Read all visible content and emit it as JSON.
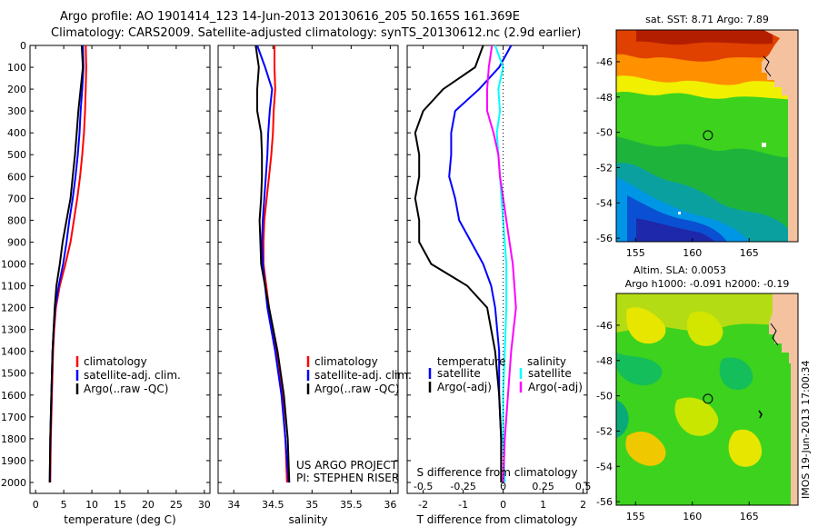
{
  "title_line1": "Argo profile: AO 1901414_123 14-Jun-2013 20130616_205 50.165S 161.369E",
  "title_line2": "Climatology: CARS2009. Satellite-adjusted climatology: synTS_20130612.nc (2.9d earlier)",
  "depth_ticks": [
    0,
    100,
    200,
    300,
    400,
    500,
    600,
    700,
    800,
    900,
    1000,
    1100,
    1200,
    1300,
    1400,
    1500,
    1600,
    1700,
    1800,
    1900,
    2000
  ],
  "colors": {
    "climatology": "#ff0000",
    "satellite": "#0000ff",
    "argo": "#000000",
    "sal_satellite": "#00ffff",
    "sal_argo": "#ff00ff",
    "land": "#f5c2a0"
  },
  "chart_data": [
    {
      "type": "line",
      "name": "temperature",
      "xlabel": "temperature (deg C)",
      "xlim": [
        -1,
        31
      ],
      "ylim": [
        0,
        2050
      ],
      "y_reversed": true,
      "xticks": [
        0,
        5,
        10,
        15,
        20,
        25,
        30
      ],
      "legend": [
        "climatology",
        "satellite-adj. clim.",
        "Argo(..raw -QC)"
      ],
      "series": [
        {
          "name": "climatology",
          "depth": [
            0,
            100,
            200,
            300,
            400,
            500,
            600,
            700,
            800,
            900,
            1000,
            1100,
            1200,
            1300,
            1400,
            1600,
            1800,
            2000
          ],
          "values": [
            8.9,
            9.0,
            8.9,
            8.8,
            8.6,
            8.3,
            7.9,
            7.4,
            6.8,
            6.2,
            5.3,
            4.3,
            3.6,
            3.3,
            3.1,
            2.9,
            2.7,
            2.6
          ]
        },
        {
          "name": "satellite-adj. clim.",
          "depth": [
            0,
            100,
            200,
            300,
            400,
            500,
            600,
            700,
            800,
            900,
            1000,
            1100,
            1200,
            1300,
            1400,
            1600,
            1800,
            2000
          ],
          "values": [
            8.4,
            8.5,
            8.3,
            8.0,
            7.8,
            7.5,
            7.1,
            6.6,
            6.0,
            5.5,
            4.9,
            4.1,
            3.5,
            3.2,
            3.0,
            2.8,
            2.6,
            2.5
          ]
        },
        {
          "name": "Argo(..raw -QC)",
          "depth": [
            0,
            100,
            200,
            300,
            400,
            500,
            600,
            700,
            800,
            900,
            1000,
            1100,
            1200,
            1300,
            1400,
            1600,
            1800,
            2000
          ],
          "values": [
            8.2,
            8.4,
            8.0,
            7.6,
            7.3,
            7.0,
            6.6,
            6.2,
            5.5,
            4.8,
            4.3,
            3.7,
            3.4,
            3.2,
            3.0,
            2.8,
            2.6,
            2.5
          ]
        }
      ]
    },
    {
      "type": "line",
      "name": "salinity",
      "xlabel": "salinity",
      "xlim": [
        33.8,
        36.1
      ],
      "ylim": [
        0,
        2050
      ],
      "y_reversed": true,
      "xticks": [
        34,
        34.5,
        35,
        35.5,
        36
      ],
      "legend": [
        "climatology",
        "satellite-adj. clim.",
        "Argo(..raw -QC)"
      ],
      "annotation": [
        "US ARGO PROJECT",
        "PI: STEPHEN RISER"
      ],
      "series": [
        {
          "name": "climatology",
          "depth": [
            0,
            100,
            200,
            300,
            400,
            500,
            600,
            700,
            800,
            900,
            1000,
            1200,
            1400,
            1600,
            1800,
            2000
          ],
          "values": [
            34.52,
            34.52,
            34.53,
            34.51,
            34.5,
            34.48,
            34.45,
            34.42,
            34.39,
            34.38,
            34.38,
            34.45,
            34.55,
            34.62,
            34.66,
            34.68
          ]
        },
        {
          "name": "satellite-adj. clim.",
          "depth": [
            0,
            100,
            200,
            300,
            400,
            500,
            600,
            700,
            800,
            900,
            1000,
            1200,
            1400,
            1600,
            1800,
            2000
          ],
          "values": [
            34.3,
            34.4,
            34.49,
            34.46,
            34.44,
            34.43,
            34.41,
            34.39,
            34.37,
            34.36,
            34.37,
            34.43,
            34.53,
            34.61,
            34.66,
            34.7
          ]
        },
        {
          "name": "Argo(..raw -QC)",
          "depth": [
            0,
            100,
            200,
            300,
            400,
            500,
            600,
            700,
            800,
            900,
            1000,
            1200,
            1400,
            1600,
            1800,
            2000
          ],
          "values": [
            34.28,
            34.32,
            34.3,
            34.3,
            34.35,
            34.36,
            34.36,
            34.35,
            34.33,
            34.34,
            34.35,
            34.45,
            34.56,
            34.64,
            34.69,
            34.71
          ]
        }
      ]
    },
    {
      "type": "line",
      "name": "difference from climatology",
      "xlabel": "T difference from climatology",
      "xlabel_top": "S difference from climatology",
      "xlim": [
        -2.4,
        2.1
      ],
      "ylim": [
        0,
        2050
      ],
      "y_reversed": true,
      "xticks": [
        -2,
        -1,
        0,
        1,
        2
      ],
      "xticks_s_labels": [
        "-0.5",
        "-0.25",
        "0",
        "0.25",
        "0.5"
      ],
      "legend_t_header": "temperature",
      "legend_s_header": "salinity",
      "legend": [
        "satellite",
        "Argo(-adj)",
        "satellite",
        "Argo(-adj)"
      ],
      "series": [
        {
          "name": "T satellite",
          "depth": [
            0,
            100,
            200,
            300,
            400,
            500,
            600,
            700,
            800,
            900,
            1000,
            1100,
            1200,
            1400,
            1600,
            1800,
            2000
          ],
          "values": [
            0.2,
            -0.1,
            -0.6,
            -1.2,
            -1.3,
            -1.3,
            -1.35,
            -1.2,
            -1.1,
            -0.8,
            -0.5,
            -0.3,
            -0.2,
            -0.1,
            -0.1,
            -0.05,
            -0.05
          ]
        },
        {
          "name": "T Argo(-adj)",
          "depth": [
            0,
            100,
            200,
            300,
            400,
            500,
            600,
            700,
            800,
            900,
            1000,
            1100,
            1200,
            1400,
            1600,
            1800,
            2000
          ],
          "values": [
            -0.5,
            -0.7,
            -1.5,
            -2.0,
            -2.2,
            -2.1,
            -2.1,
            -2.2,
            -2.1,
            -2.1,
            -1.8,
            -0.9,
            -0.4,
            -0.2,
            -0.1,
            -0.05,
            -0.05
          ]
        },
        {
          "name": "S satellite",
          "depth": [
            0,
            100,
            200,
            300,
            400,
            500,
            600,
            700,
            800,
            900,
            1000,
            1200,
            1400,
            1600,
            1800,
            2000
          ],
          "values": [
            -0.05,
            0.0,
            -0.03,
            -0.02,
            -0.04,
            -0.03,
            -0.02,
            -0.01,
            0.0,
            0.01,
            0.02,
            0.02,
            0.01,
            0.0,
            0.0,
            0.01
          ]
        },
        {
          "name": "S Argo(-adj)",
          "depth": [
            0,
            100,
            200,
            300,
            400,
            500,
            600,
            700,
            800,
            900,
            1000,
            1200,
            1400,
            1600,
            1800,
            2000
          ],
          "values": [
            -0.07,
            -0.09,
            -0.1,
            -0.1,
            -0.06,
            -0.03,
            -0.02,
            0.0,
            0.02,
            0.04,
            0.06,
            0.08,
            0.05,
            0.03,
            0.01,
            0.0
          ]
        }
      ]
    },
    {
      "type": "heatmap",
      "name": "sat SST map",
      "title": "sat. SST: 8.71  Argo: 7.89",
      "xticks": [
        155,
        160,
        165
      ],
      "yticks": [
        -46,
        -48,
        -50,
        -52,
        -54,
        -56
      ],
      "xlim": [
        153.3,
        169.3
      ],
      "ylim": [
        -56.2,
        -44.2
      ],
      "argo_position": [
        161.37,
        -50.17
      ]
    },
    {
      "type": "heatmap",
      "name": "altimetry SLA map",
      "title_line1": "Altim. SLA: 0.0053",
      "title_line2": "Argo h1000: -0.091  h2000: -0.19",
      "xticks": [
        155,
        160,
        165
      ],
      "yticks": [
        -46,
        -48,
        -50,
        -52,
        -54,
        -56
      ],
      "xlim": [
        153.3,
        169.3
      ],
      "ylim": [
        -56.2,
        -44.2
      ],
      "argo_position": [
        161.37,
        -50.17
      ],
      "side_label": "IMOS 19-Jun-2013 17:00:34"
    }
  ]
}
